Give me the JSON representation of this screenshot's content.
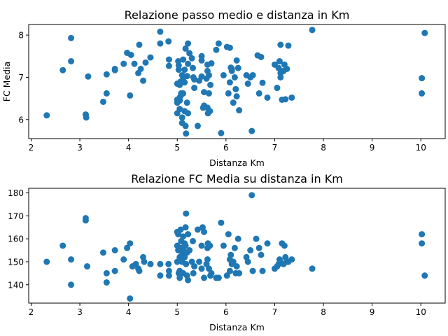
{
  "chart_data": [
    {
      "type": "scatter",
      "title": "Relazione passo medio e distanza in Km",
      "xlabel": "Distanza Km",
      "ylabel": "FC Media",
      "xlim": [
        1.95,
        10.5
      ],
      "ylim": [
        5.55,
        8.25
      ],
      "xticks": [
        "2",
        "3",
        "4",
        "5",
        "6",
        "7",
        "8",
        "9",
        "10"
      ],
      "yticks": [
        "6",
        "7",
        "8"
      ],
      "color": "#1f77b4",
      "points": [
        [
          2.32,
          6.1
        ],
        [
          2.65,
          7.17
        ],
        [
          2.82,
          7.93
        ],
        [
          2.82,
          7.38
        ],
        [
          3.12,
          6.12
        ],
        [
          3.13,
          6.05
        ],
        [
          3.17,
          7.02
        ],
        [
          3.48,
          6.42
        ],
        [
          3.55,
          6.62
        ],
        [
          3.55,
          7.07
        ],
        [
          3.72,
          7.17
        ],
        [
          3.72,
          7.2
        ],
        [
          3.9,
          7.32
        ],
        [
          3.97,
          7.58
        ],
        [
          4.03,
          6.57
        ],
        [
          4.05,
          7.53
        ],
        [
          4.12,
          7.32
        ],
        [
          4.2,
          7.1
        ],
        [
          4.22,
          7.77
        ],
        [
          4.25,
          7.2
        ],
        [
          4.3,
          6.92
        ],
        [
          4.35,
          7.35
        ],
        [
          4.45,
          7.47
        ],
        [
          4.65,
          8.08
        ],
        [
          4.65,
          7.8
        ],
        [
          4.82,
          7.85
        ],
        [
          4.83,
          7.42
        ],
        [
          4.83,
          7.27
        ],
        [
          5.0,
          6.85
        ],
        [
          5.0,
          6.47
        ],
        [
          5.0,
          6.4
        ],
        [
          5.0,
          6.15
        ],
        [
          5.02,
          7.38
        ],
        [
          5.03,
          7.28
        ],
        [
          5.03,
          7.18
        ],
        [
          5.05,
          6.82
        ],
        [
          5.05,
          6.52
        ],
        [
          5.05,
          6.45
        ],
        [
          5.05,
          6.25
        ],
        [
          5.07,
          6.9
        ],
        [
          5.08,
          6.62
        ],
        [
          5.08,
          6.58
        ],
        [
          5.1,
          7.05
        ],
        [
          5.1,
          6.05
        ],
        [
          5.1,
          5.92
        ],
        [
          5.12,
          7.42
        ],
        [
          5.12,
          6.95
        ],
        [
          5.12,
          6.62
        ],
        [
          5.15,
          7.18
        ],
        [
          5.15,
          6.88
        ],
        [
          5.15,
          6.2
        ],
        [
          5.17,
          7.68
        ],
        [
          5.17,
          5.85
        ],
        [
          5.18,
          5.67
        ],
        [
          5.2,
          7.03
        ],
        [
          5.2,
          6.4
        ],
        [
          5.22,
          7.8
        ],
        [
          5.22,
          7.32
        ],
        [
          5.22,
          6.15
        ],
        [
          5.25,
          7.57
        ],
        [
          5.3,
          7.45
        ],
        [
          5.32,
          7.22
        ],
        [
          5.33,
          7.0
        ],
        [
          5.35,
          6.75
        ],
        [
          5.35,
          6.95
        ],
        [
          5.42,
          5.85
        ],
        [
          5.45,
          6.92
        ],
        [
          5.5,
          7.5
        ],
        [
          5.5,
          7.4
        ],
        [
          5.5,
          7.02
        ],
        [
          5.53,
          6.28
        ],
        [
          5.55,
          6.65
        ],
        [
          5.55,
          6.33
        ],
        [
          5.6,
          6.97
        ],
        [
          5.62,
          7.3
        ],
        [
          5.62,
          7.15
        ],
        [
          5.62,
          6.28
        ],
        [
          5.63,
          6.15
        ],
        [
          5.65,
          6.62
        ],
        [
          5.65,
          7.05
        ],
        [
          5.67,
          6.2
        ],
        [
          5.68,
          6.82
        ],
        [
          5.7,
          7.33
        ],
        [
          5.8,
          7.65
        ],
        [
          5.85,
          7.8
        ],
        [
          5.9,
          5.68
        ],
        [
          5.95,
          7.05
        ],
        [
          6.02,
          7.72
        ],
        [
          6.05,
          6.62
        ],
        [
          6.08,
          7.7
        ],
        [
          6.08,
          6.88
        ],
        [
          6.1,
          7.23
        ],
        [
          6.12,
          7.2
        ],
        [
          6.12,
          7.15
        ],
        [
          6.15,
          6.4
        ],
        [
          6.18,
          7.0
        ],
        [
          6.2,
          6.72
        ],
        [
          6.22,
          7.4
        ],
        [
          6.22,
          6.55
        ],
        [
          6.25,
          7.22
        ],
        [
          6.27,
          6.22
        ],
        [
          6.42,
          7.05
        ],
        [
          6.45,
          6.85
        ],
        [
          6.5,
          7.0
        ],
        [
          6.53,
          5.73
        ],
        [
          6.55,
          7.05
        ],
        [
          6.65,
          7.52
        ],
        [
          6.68,
          6.62
        ],
        [
          6.72,
          7.48
        ],
        [
          6.75,
          6.87
        ],
        [
          6.85,
          6.52
        ],
        [
          7.0,
          7.3
        ],
        [
          7.05,
          6.75
        ],
        [
          7.08,
          7.22
        ],
        [
          7.1,
          7.38
        ],
        [
          7.12,
          7.1
        ],
        [
          7.12,
          7.77
        ],
        [
          7.12,
          7.0
        ],
        [
          7.15,
          6.47
        ],
        [
          7.18,
          7.15
        ],
        [
          7.2,
          7.3
        ],
        [
          7.22,
          6.48
        ],
        [
          7.25,
          7.2
        ],
        [
          7.28,
          7.75
        ],
        [
          7.35,
          6.52
        ],
        [
          7.77,
          8.12
        ],
        [
          10.02,
          6.98
        ],
        [
          10.02,
          6.62
        ],
        [
          10.08,
          8.05
        ]
      ]
    },
    {
      "type": "scatter",
      "title": "Relazione FC Media su distanza in Km",
      "xlabel": "Distanza Km",
      "ylabel": "",
      "xlim": [
        1.95,
        10.5
      ],
      "ylim": [
        132,
        182
      ],
      "xticks": [
        "2",
        "3",
        "4",
        "5",
        "6",
        "7",
        "8",
        "9",
        "10"
      ],
      "yticks": [
        "140",
        "150",
        "160",
        "170",
        "180"
      ],
      "color": "#1f77b4",
      "points": [
        [
          2.32,
          150
        ],
        [
          2.65,
          157
        ],
        [
          2.82,
          151
        ],
        [
          2.82,
          140
        ],
        [
          3.12,
          169
        ],
        [
          3.12,
          168
        ],
        [
          3.15,
          148
        ],
        [
          3.48,
          154
        ],
        [
          3.55,
          145
        ],
        [
          3.55,
          141
        ],
        [
          3.72,
          146
        ],
        [
          3.72,
          155
        ],
        [
          3.9,
          151
        ],
        [
          3.97,
          156
        ],
        [
          4.03,
          158
        ],
        [
          4.03,
          134
        ],
        [
          4.08,
          148
        ],
        [
          4.15,
          149
        ],
        [
          4.2,
          147
        ],
        [
          4.22,
          146
        ],
        [
          4.3,
          152
        ],
        [
          4.32,
          150
        ],
        [
          4.45,
          149
        ],
        [
          4.65,
          149
        ],
        [
          4.65,
          144
        ],
        [
          4.82,
          149
        ],
        [
          4.83,
          146
        ],
        [
          4.83,
          144
        ],
        [
          5.0,
          163
        ],
        [
          5.0,
          157
        ],
        [
          5.0,
          150
        ],
        [
          5.02,
          162
        ],
        [
          5.02,
          155
        ],
        [
          5.03,
          145
        ],
        [
          5.05,
          152
        ],
        [
          5.05,
          146
        ],
        [
          5.05,
          143
        ],
        [
          5.07,
          164
        ],
        [
          5.08,
          159
        ],
        [
          5.08,
          156
        ],
        [
          5.1,
          153
        ],
        [
          5.1,
          150
        ],
        [
          5.12,
          161
        ],
        [
          5.12,
          155
        ],
        [
          5.12,
          145
        ],
        [
          5.15,
          158
        ],
        [
          5.15,
          152
        ],
        [
          5.17,
          165
        ],
        [
          5.17,
          157
        ],
        [
          5.18,
          171
        ],
        [
          5.18,
          149
        ],
        [
          5.2,
          154
        ],
        [
          5.2,
          144
        ],
        [
          5.22,
          162
        ],
        [
          5.22,
          142
        ],
        [
          5.25,
          155
        ],
        [
          5.3,
          150
        ],
        [
          5.32,
          159
        ],
        [
          5.33,
          145
        ],
        [
          5.35,
          148
        ],
        [
          5.42,
          164
        ],
        [
          5.45,
          150
        ],
        [
          5.5,
          157
        ],
        [
          5.5,
          147
        ],
        [
          5.52,
          165
        ],
        [
          5.55,
          143
        ],
        [
          5.55,
          163
        ],
        [
          5.6,
          149
        ],
        [
          5.62,
          156
        ],
        [
          5.62,
          151
        ],
        [
          5.63,
          158
        ],
        [
          5.65,
          147
        ],
        [
          5.67,
          157
        ],
        [
          5.68,
          144
        ],
        [
          5.7,
          145
        ],
        [
          5.8,
          143
        ],
        [
          5.85,
          143
        ],
        [
          5.9,
          167
        ],
        [
          5.95,
          157
        ],
        [
          6.02,
          144
        ],
        [
          6.05,
          162
        ],
        [
          6.08,
          151
        ],
        [
          6.08,
          146
        ],
        [
          6.1,
          153
        ],
        [
          6.12,
          149
        ],
        [
          6.15,
          150
        ],
        [
          6.18,
          156
        ],
        [
          6.2,
          145
        ],
        [
          6.22,
          148
        ],
        [
          6.25,
          160
        ],
        [
          6.27,
          145
        ],
        [
          6.42,
          152
        ],
        [
          6.45,
          150
        ],
        [
          6.5,
          155
        ],
        [
          6.53,
          179
        ],
        [
          6.55,
          146
        ],
        [
          6.62,
          160
        ],
        [
          6.68,
          156
        ],
        [
          6.72,
          153
        ],
        [
          6.75,
          146
        ],
        [
          6.85,
          158
        ],
        [
          7.0,
          147
        ],
        [
          7.05,
          148
        ],
        [
          7.08,
          149
        ],
        [
          7.1,
          151
        ],
        [
          7.12,
          150
        ],
        [
          7.15,
          158
        ],
        [
          7.18,
          149
        ],
        [
          7.2,
          157
        ],
        [
          7.22,
          152
        ],
        [
          7.25,
          150
        ],
        [
          7.28,
          150
        ],
        [
          7.35,
          151
        ],
        [
          7.77,
          147
        ],
        [
          10.02,
          162
        ],
        [
          10.02,
          158
        ],
        [
          10.08,
          144
        ]
      ]
    }
  ]
}
